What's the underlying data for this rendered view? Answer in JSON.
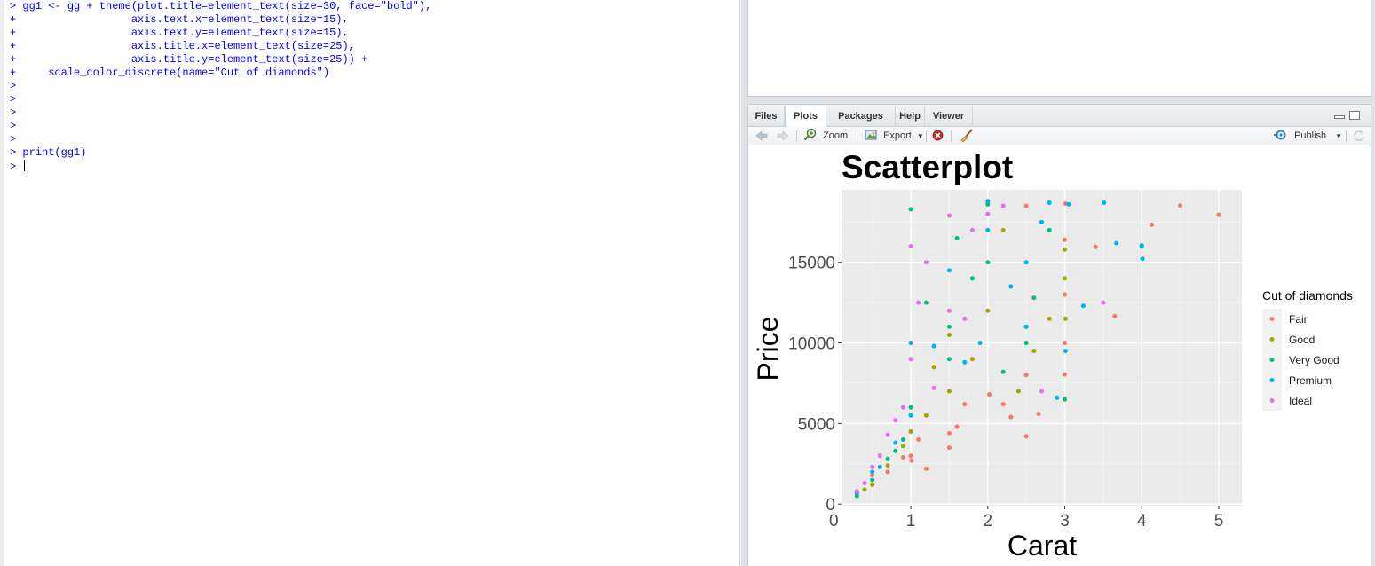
{
  "console": {
    "lines": [
      {
        "prompt": "> ",
        "code": "gg1 <- gg + theme(plot.title=element_text(size=30, face=\"bold\"),"
      },
      {
        "prompt": "+ ",
        "code": "                 axis.text.x=element_text(size=15),"
      },
      {
        "prompt": "+ ",
        "code": "                 axis.text.y=element_text(size=15),"
      },
      {
        "prompt": "+ ",
        "code": "                 axis.title.x=element_text(size=25),"
      },
      {
        "prompt": "+ ",
        "code": "                 axis.title.y=element_text(size=25)) +"
      },
      {
        "prompt": "+ ",
        "code": "    scale_color_discrete(name=\"Cut of diamonds\")"
      },
      {
        "prompt": "> ",
        "code": ""
      },
      {
        "prompt": "> ",
        "code": ""
      },
      {
        "prompt": "> ",
        "code": ""
      },
      {
        "prompt": "> ",
        "code": ""
      },
      {
        "prompt": "> ",
        "code": ""
      },
      {
        "prompt": "> ",
        "code": "print(gg1)"
      },
      {
        "prompt": "> ",
        "code": ""
      }
    ]
  },
  "tabs": [
    "Files",
    "Plots",
    "Packages",
    "Help",
    "Viewer"
  ],
  "active_tab": "Plots",
  "toolbar": {
    "zoom_label": "Zoom",
    "export_label": "Export",
    "publish_label": "Publish"
  },
  "colors": {
    "console_text": "#0000ff",
    "panel_bg": "#ebebeb",
    "Fair": "#F8766D",
    "Good": "#A3A500",
    "Very Good": "#00BF7D",
    "Premium": "#00B0F6",
    "Ideal": "#E76BF3"
  },
  "chart_data": {
    "type": "scatter",
    "title": "Scatterplot",
    "xlabel": "Carat",
    "ylabel": "Price",
    "xlim": [
      0.1,
      5.3
    ],
    "ylim": [
      -100,
      19500
    ],
    "x_ticks": [
      0,
      1,
      2,
      3,
      4,
      5
    ],
    "y_ticks": [
      0,
      5000,
      10000,
      15000
    ],
    "x_tick_labels": [
      "0",
      "1",
      "2",
      "3",
      "4",
      "5"
    ],
    "y_tick_labels": [
      "0",
      "5000",
      "10000",
      "15000"
    ],
    "grid": true,
    "legend_title": "Cut of diamonds",
    "legend_position": "right",
    "series": [
      {
        "name": "Fair",
        "color": "#F8766D",
        "points": [
          [
            5.0,
            17950
          ],
          [
            4.5,
            18530
          ],
          [
            4.13,
            17330
          ],
          [
            3.65,
            11670
          ],
          [
            3.4,
            15960
          ],
          [
            3.01,
            18650
          ],
          [
            3.0,
            16400
          ],
          [
            3.0,
            13000
          ],
          [
            3.0,
            10000
          ],
          [
            3.0,
            8040
          ],
          [
            3.0,
            6500
          ],
          [
            2.66,
            5600
          ],
          [
            2.5,
            18500
          ],
          [
            2.5,
            8000
          ],
          [
            2.2,
            6200
          ],
          [
            2.02,
            6800
          ],
          [
            1.6,
            4800
          ],
          [
            1.5,
            4400
          ],
          [
            1.5,
            3500
          ],
          [
            1.1,
            4000
          ],
          [
            1.0,
            3000
          ],
          [
            1.01,
            2700
          ],
          [
            0.9,
            2900
          ],
          [
            0.7,
            2000
          ],
          [
            0.5,
            1800
          ],
          [
            0.3,
            600
          ],
          [
            2.5,
            4200
          ],
          [
            2.3,
            5400
          ],
          [
            1.7,
            6200
          ],
          [
            1.2,
            2200
          ]
        ]
      },
      {
        "name": "Good",
        "color": "#A3A500",
        "points": [
          [
            3.01,
            11500
          ],
          [
            3.0,
            15800
          ],
          [
            3.0,
            14000
          ],
          [
            2.8,
            11500
          ],
          [
            2.5,
            11000
          ],
          [
            2.4,
            7000
          ],
          [
            2.0,
            18700
          ],
          [
            2.0,
            12000
          ],
          [
            1.5,
            10500
          ],
          [
            1.5,
            7000
          ],
          [
            1.0,
            4500
          ],
          [
            0.9,
            3600
          ],
          [
            0.7,
            2400
          ],
          [
            0.5,
            1200
          ],
          [
            2.2,
            17000
          ],
          [
            1.8,
            9000
          ],
          [
            1.2,
            5500
          ],
          [
            0.4,
            900
          ],
          [
            2.6,
            9500
          ],
          [
            1.3,
            8500
          ]
        ]
      },
      {
        "name": "Very Good",
        "color": "#00BF7D",
        "points": [
          [
            4.0,
            15980
          ],
          [
            3.0,
            6500
          ],
          [
            2.8,
            17000
          ],
          [
            2.5,
            10000
          ],
          [
            2.0,
            18600
          ],
          [
            2.0,
            15000
          ],
          [
            1.5,
            11000
          ],
          [
            1.5,
            9000
          ],
          [
            1.0,
            18300
          ],
          [
            1.0,
            6000
          ],
          [
            0.9,
            4000
          ],
          [
            0.7,
            2800
          ],
          [
            0.5,
            1500
          ],
          [
            0.3,
            500
          ],
          [
            2.2,
            8200
          ],
          [
            1.8,
            14000
          ],
          [
            1.2,
            12500
          ],
          [
            2.6,
            12800
          ],
          [
            1.6,
            16500
          ],
          [
            0.8,
            3300
          ]
        ]
      },
      {
        "name": "Premium",
        "color": "#00B0F6",
        "points": [
          [
            4.01,
            15220
          ],
          [
            4.0,
            16050
          ],
          [
            3.67,
            16190
          ],
          [
            3.51,
            18700
          ],
          [
            3.24,
            12300
          ],
          [
            3.05,
            18600
          ],
          [
            3.01,
            9500
          ],
          [
            2.8,
            18700
          ],
          [
            2.5,
            15000
          ],
          [
            2.5,
            11000
          ],
          [
            2.0,
            18800
          ],
          [
            2.0,
            17000
          ],
          [
            1.9,
            10000
          ],
          [
            1.5,
            14500
          ],
          [
            1.0,
            10000
          ],
          [
            1.0,
            5500
          ],
          [
            0.8,
            3800
          ],
          [
            0.5,
            2000
          ],
          [
            0.3,
            700
          ],
          [
            2.3,
            13500
          ],
          [
            2.7,
            17500
          ],
          [
            1.7,
            8800
          ],
          [
            1.3,
            9800
          ],
          [
            2.9,
            6600
          ],
          [
            0.6,
            2300
          ]
        ]
      },
      {
        "name": "Ideal",
        "color": "#E76BF3",
        "points": [
          [
            3.5,
            12500
          ],
          [
            2.7,
            7000
          ],
          [
            2.2,
            18500
          ],
          [
            2.0,
            18000
          ],
          [
            1.8,
            17000
          ],
          [
            1.5,
            17900
          ],
          [
            1.5,
            12000
          ],
          [
            1.2,
            15000
          ],
          [
            1.0,
            16000
          ],
          [
            1.0,
            9000
          ],
          [
            0.9,
            6000
          ],
          [
            0.8,
            5200
          ],
          [
            0.7,
            4300
          ],
          [
            0.6,
            3000
          ],
          [
            0.5,
            2300
          ],
          [
            0.4,
            1300
          ],
          [
            0.3,
            800
          ],
          [
            1.7,
            11500
          ],
          [
            1.1,
            12500
          ],
          [
            1.3,
            7200
          ]
        ]
      }
    ]
  }
}
